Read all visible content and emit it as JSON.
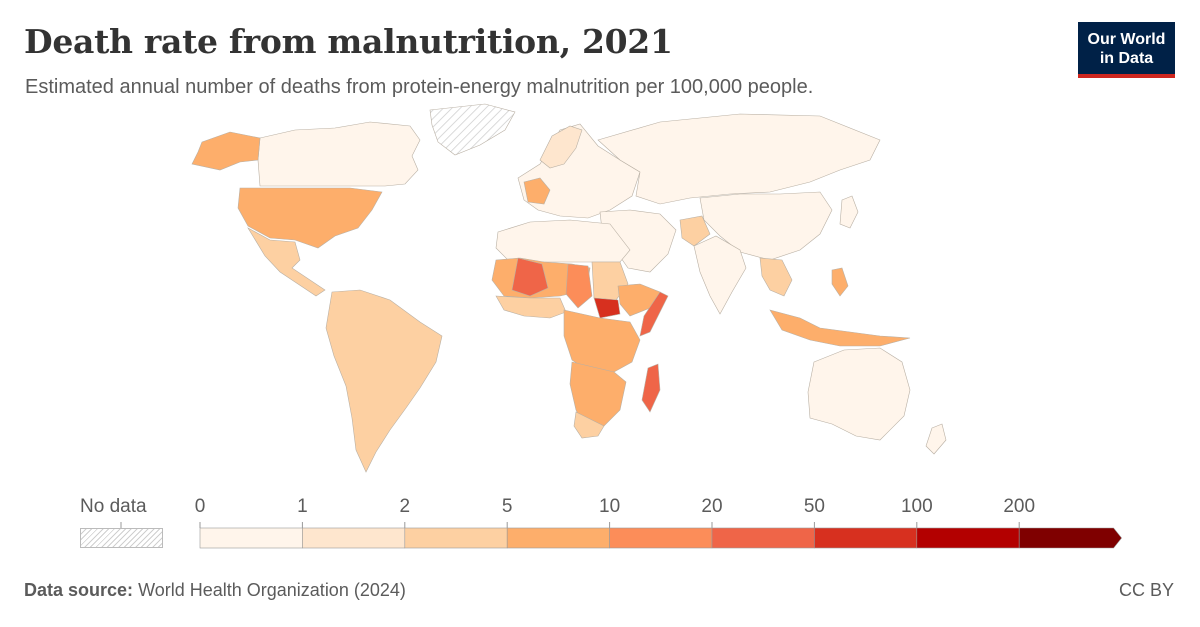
{
  "header": {
    "title": "Death rate from malnutrition, 2021",
    "subtitle": "Estimated annual number of deaths from protein-energy malnutrition per 100,000 people."
  },
  "logo": {
    "line1": "Our World",
    "line2": "in Data",
    "bg_color": "#002147",
    "accent_color": "#ce261e"
  },
  "legend": {
    "no_data_label": "No data",
    "ticks": [
      "0",
      "1",
      "2",
      "5",
      "10",
      "20",
      "50",
      "100",
      "200"
    ],
    "colors": [
      "#fff5eb",
      "#fee6ce",
      "#fdd0a2",
      "#fdae6b",
      "#fc8d59",
      "#ef6548",
      "#d7301f",
      "#b30000",
      "#7f0000"
    ]
  },
  "footer": {
    "source_label": "Data source:",
    "source_text": "World Health Organization (2024)",
    "license": "CC BY"
  }
}
